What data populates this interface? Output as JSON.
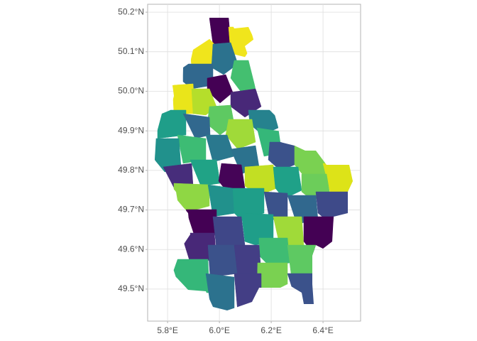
{
  "chart_data": {
    "type": "map",
    "xlim": [
      5.723,
      6.545
    ],
    "ylim": [
      49.419,
      50.22
    ],
    "xticks": [
      {
        "value": 5.8,
        "label": "5.8°E"
      },
      {
        "value": 6.0,
        "label": "6.0°E"
      },
      {
        "value": 6.2,
        "label": "6.2°E"
      },
      {
        "value": 6.4,
        "label": "6.4°E"
      }
    ],
    "yticks": [
      {
        "value": 49.5,
        "label": "49.5°N"
      },
      {
        "value": 49.6,
        "label": "49.6°N"
      },
      {
        "value": 49.7,
        "label": "49.7°N"
      },
      {
        "value": 49.8,
        "label": "49.8°N"
      },
      {
        "value": 49.9,
        "label": "49.9°N"
      },
      {
        "value": 50.0,
        "label": "50.0°N"
      },
      {
        "value": 50.1,
        "label": "50.1°N"
      },
      {
        "value": 50.2,
        "label": "50.2°N"
      }
    ],
    "grid": true
  }
}
